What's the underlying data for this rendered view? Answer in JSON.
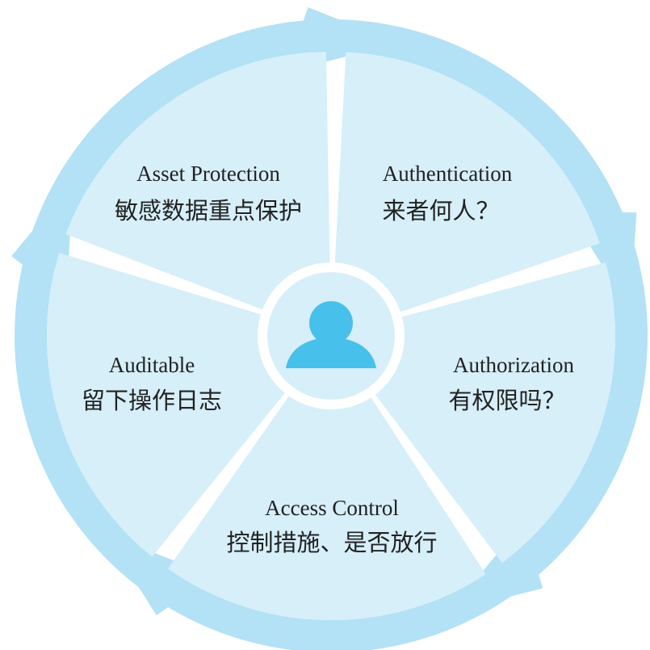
{
  "colors": {
    "wedge": "#d6eff9",
    "arrow": "#b3e1f6",
    "center": "#d6eff9",
    "person": "#48c0ec",
    "text": "#222222"
  },
  "center": {
    "icon": "person-icon"
  },
  "segments": [
    {
      "title": "Authentication",
      "subtitle": "来者何人？"
    },
    {
      "title": "Authorization",
      "subtitle": "有权限吗？"
    },
    {
      "title": "Access Control",
      "subtitle": "控制措施、是否放行"
    },
    {
      "title": "Auditable",
      "subtitle": "留下操作日志"
    },
    {
      "title": "Asset Protection",
      "subtitle": "敏感数据重点保护"
    }
  ]
}
